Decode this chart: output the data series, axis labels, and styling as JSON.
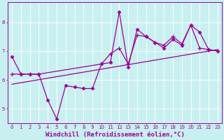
{
  "bg_color": "#c8f0f0",
  "line_color": "#990099",
  "grid_color": "#ffffff",
  "xlabel": "Windchill (Refroidissement éolien,°C)",
  "xlabel_color": "#990099",
  "xlim": [
    -0.5,
    23.5
  ],
  "ylim": [
    4.5,
    8.7
  ],
  "yticks": [
    5,
    6,
    7,
    8
  ],
  "xticks": [
    0,
    1,
    2,
    3,
    4,
    5,
    6,
    7,
    8,
    9,
    10,
    11,
    12,
    13,
    14,
    15,
    16,
    17,
    18,
    19,
    20,
    21,
    22,
    23
  ],
  "series1_x": [
    0,
    1,
    2,
    3,
    4,
    5,
    6,
    7,
    8,
    9,
    10,
    11,
    12,
    13,
    14,
    15,
    16,
    17,
    18,
    19,
    20,
    21,
    22,
    23
  ],
  "series1_y": [
    6.8,
    6.2,
    6.2,
    6.2,
    5.3,
    4.65,
    5.8,
    5.75,
    5.7,
    5.7,
    6.55,
    6.6,
    8.35,
    6.45,
    7.75,
    7.5,
    7.3,
    7.1,
    7.4,
    7.2,
    7.9,
    7.65,
    7.05,
    7.0
  ],
  "series2_x": [
    0,
    1,
    2,
    3,
    10,
    11,
    12,
    13,
    14,
    15,
    16,
    17,
    18,
    19,
    20,
    21,
    22,
    23
  ],
  "series2_y": [
    6.2,
    6.2,
    6.2,
    6.2,
    6.55,
    6.9,
    7.1,
    6.55,
    7.55,
    7.5,
    7.3,
    7.2,
    7.5,
    7.25,
    7.9,
    7.1,
    7.05,
    7.0
  ],
  "trend_x": [
    0,
    23
  ],
  "trend_y": [
    5.85,
    7.05
  ],
  "marker_size": 2.5,
  "linewidth": 0.9,
  "tick_fontsize": 5,
  "xlabel_fontsize": 6.5,
  "tick_color": "#990099",
  "axis_color": "#990099"
}
